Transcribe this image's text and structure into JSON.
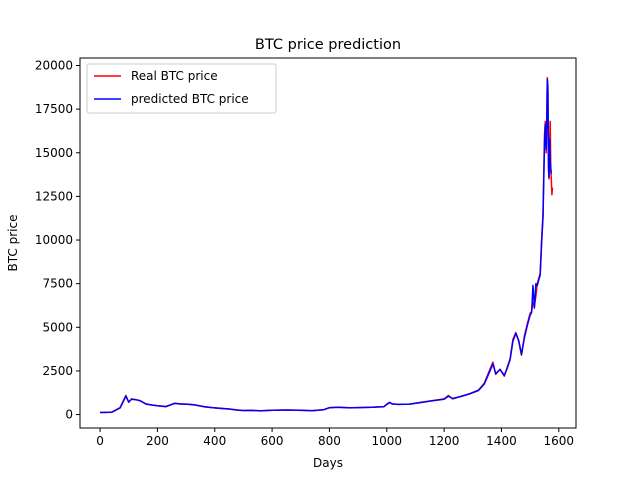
{
  "chart_data": {
    "type": "line",
    "title": "BTC price prediction",
    "xlabel": "Days",
    "ylabel": "BTC price",
    "xlim": [
      -70,
      1660
    ],
    "ylim": [
      -770,
      20430
    ],
    "xticks": [
      0,
      200,
      400,
      600,
      800,
      1000,
      1200,
      1400,
      1600
    ],
    "yticks": [
      0,
      2500,
      5000,
      7500,
      10000,
      12500,
      15000,
      17500,
      20000
    ],
    "grid": false,
    "legend_position": "top-left",
    "series": [
      {
        "name": "Real BTC price",
        "color": "#ff0000",
        "x": [
          0,
          40,
          70,
          90,
          100,
          110,
          125,
          140,
          160,
          180,
          200,
          230,
          260,
          280,
          300,
          330,
          360,
          390,
          420,
          450,
          480,
          500,
          530,
          560,
          600,
          650,
          700,
          740,
          780,
          800,
          830,
          870,
          900,
          950,
          990,
          1000,
          1010,
          1020,
          1040,
          1080,
          1120,
          1160,
          1200,
          1215,
          1230,
          1260,
          1290,
          1320,
          1340,
          1360,
          1370,
          1380,
          1395,
          1410,
          1420,
          1430,
          1440,
          1450,
          1460,
          1470,
          1480,
          1490,
          1500,
          1505,
          1510,
          1515,
          1520,
          1525,
          1530,
          1535,
          1540,
          1545,
          1550,
          1553,
          1556,
          1558,
          1560,
          1562,
          1564,
          1566,
          1568,
          1570,
          1572,
          1574,
          1576,
          1578
        ],
        "values": [
          120,
          130,
          400,
          1100,
          700,
          900,
          850,
          800,
          600,
          550,
          500,
          450,
          650,
          600,
          600,
          550,
          450,
          400,
          350,
          320,
          250,
          230,
          240,
          210,
          250,
          260,
          240,
          220,
          280,
          400,
          420,
          380,
          400,
          420,
          450,
          600,
          700,
          600,
          580,
          600,
          700,
          800,
          900,
          1100,
          900,
          1050,
          1200,
          1400,
          1800,
          2600,
          3000,
          2300,
          2600,
          2200,
          2700,
          3200,
          4300,
          4700,
          4200,
          3400,
          4500,
          5200,
          5800,
          5900,
          6400,
          6200,
          6800,
          7500,
          7800,
          8100,
          10000,
          11500,
          16000,
          16800,
          15000,
          17000,
          19300,
          18500,
          14000,
          13500,
          15500,
          16800,
          14000,
          13500,
          12600,
          13000
        ]
      },
      {
        "name": "predicted BTC price",
        "color": "#0000ff",
        "x": [
          0,
          40,
          70,
          90,
          100,
          110,
          125,
          140,
          160,
          180,
          200,
          230,
          260,
          280,
          300,
          330,
          360,
          390,
          420,
          450,
          480,
          500,
          530,
          560,
          600,
          650,
          700,
          740,
          780,
          800,
          830,
          870,
          900,
          950,
          990,
          1000,
          1010,
          1020,
          1040,
          1080,
          1120,
          1160,
          1200,
          1215,
          1230,
          1260,
          1290,
          1320,
          1340,
          1360,
          1370,
          1380,
          1395,
          1410,
          1420,
          1430,
          1440,
          1450,
          1460,
          1470,
          1480,
          1490,
          1500,
          1505,
          1510,
          1515,
          1520,
          1525,
          1530,
          1535,
          1540,
          1545,
          1550,
          1553,
          1556,
          1558,
          1560,
          1562,
          1564,
          1566,
          1568,
          1570,
          1572,
          1574
        ],
        "values": [
          120,
          130,
          380,
          1050,
          720,
          880,
          850,
          790,
          610,
          550,
          510,
          460,
          640,
          610,
          600,
          560,
          460,
          400,
          360,
          320,
          260,
          230,
          240,
          215,
          250,
          260,
          245,
          225,
          280,
          390,
          420,
          385,
          400,
          420,
          450,
          580,
          680,
          610,
          580,
          600,
          690,
          790,
          880,
          1050,
          920,
          1040,
          1190,
          1380,
          1750,
          2500,
          2900,
          2350,
          2580,
          2250,
          2650,
          3150,
          4200,
          4650,
          4250,
          3450,
          4400,
          5100,
          5700,
          5850,
          7400,
          6100,
          7500,
          7400,
          7700,
          8000,
          9800,
          11300,
          15500,
          16600,
          15200,
          17000,
          19200,
          18800,
          14300,
          13600,
          15800,
          14500,
          14100,
          13800
        ]
      }
    ]
  }
}
